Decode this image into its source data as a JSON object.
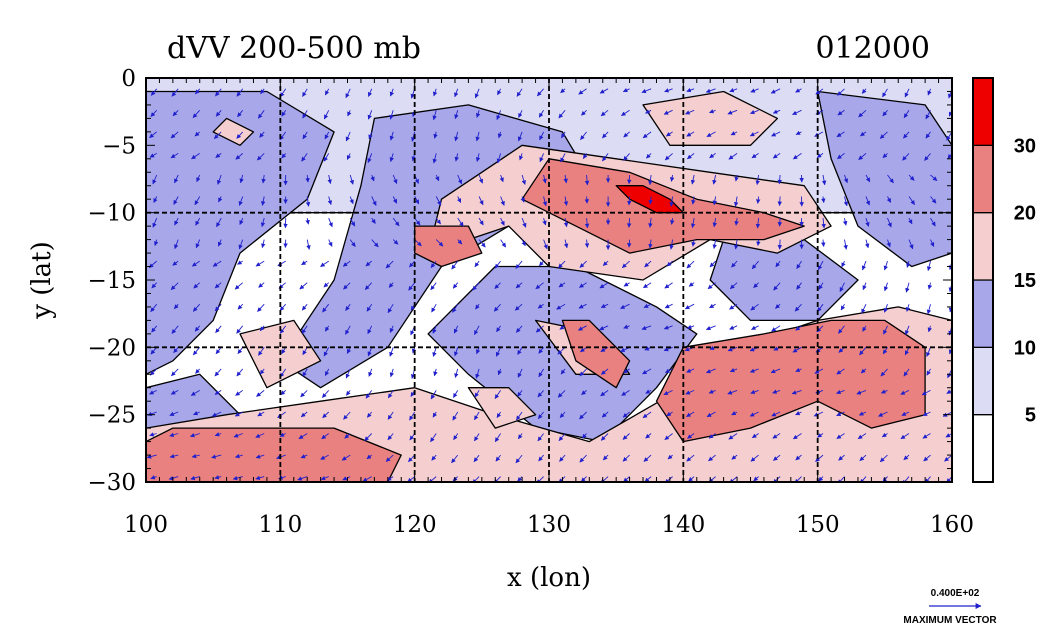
{
  "chart_data": {
    "type": "heatmap",
    "title": "dVV 200-500 mb",
    "time_label": "012000",
    "xlabel": "x (lon)",
    "ylabel": "y (lat)",
    "xlim": [
      100,
      160
    ],
    "ylim": [
      -30,
      0
    ],
    "x_ticks": [
      100,
      110,
      120,
      130,
      140,
      150,
      160
    ],
    "y_ticks": [
      0,
      -5,
      -10,
      -15,
      -20,
      -25,
      -30
    ],
    "x_tick_labels": [
      "100",
      "110",
      "120",
      "130",
      "140",
      "150",
      "160"
    ],
    "y_tick_labels": [
      "0",
      "−5",
      "−10",
      "−15",
      "−20",
      "−25",
      "−30"
    ],
    "grid_x": [
      110,
      120,
      130,
      140,
      150
    ],
    "grid_y": [
      -10,
      -20
    ],
    "colorbar": {
      "levels": [
        0,
        5,
        10,
        15,
        20,
        30,
        40
      ],
      "labels": [
        "5",
        "10",
        "15",
        "20",
        "30"
      ],
      "label_levels": [
        5,
        10,
        15,
        20,
        30
      ],
      "colors": [
        "#ffffff",
        "#dcdcf5",
        "#a7a7e9",
        "#f5cfcf",
        "#ea8181",
        "#ee0000"
      ]
    },
    "vectors": {
      "color": "#2020cc",
      "max_vector_value": "0.400E+02",
      "max_vector_label": "MAXIMUM VECTOR"
    },
    "field_regions": [
      {
        "band": 1,
        "points": [
          [
            100,
            0
          ],
          [
            160,
            0
          ],
          [
            160,
            -10
          ],
          [
            100,
            -10
          ]
        ]
      },
      {
        "band": 2,
        "points": [
          [
            100,
            -1
          ],
          [
            109,
            -1
          ],
          [
            114,
            -4
          ],
          [
            112,
            -9
          ],
          [
            107,
            -13
          ],
          [
            105,
            -18
          ],
          [
            102,
            -21
          ],
          [
            100,
            -22
          ]
        ]
      },
      {
        "band": 2,
        "points": [
          [
            117,
            -3
          ],
          [
            124,
            -2
          ],
          [
            131,
            -4
          ],
          [
            134,
            -9
          ],
          [
            133,
            -13
          ],
          [
            127,
            -11
          ],
          [
            122,
            -14
          ],
          [
            118,
            -20
          ],
          [
            113,
            -23
          ],
          [
            110,
            -21
          ],
          [
            114,
            -15
          ],
          [
            116,
            -8
          ]
        ]
      },
      {
        "band": 2,
        "points": [
          [
            126,
            -14
          ],
          [
            132,
            -14
          ],
          [
            138,
            -17
          ],
          [
            141,
            -19
          ],
          [
            138,
            -23
          ],
          [
            134,
            -27
          ],
          [
            129,
            -26
          ],
          [
            124,
            -22
          ],
          [
            121,
            -19
          ]
        ]
      },
      {
        "band": 2,
        "points": [
          [
            143,
            -12
          ],
          [
            149,
            -12
          ],
          [
            153,
            -15
          ],
          [
            150,
            -18
          ],
          [
            145,
            -18
          ],
          [
            142,
            -15
          ]
        ]
      },
      {
        "band": 2,
        "points": [
          [
            150,
            -1
          ],
          [
            158,
            -2
          ],
          [
            160,
            -5
          ],
          [
            160,
            -13
          ],
          [
            157,
            -14
          ],
          [
            153,
            -11
          ],
          [
            151,
            -6
          ]
        ]
      },
      {
        "band": 2,
        "points": [
          [
            100,
            -23
          ],
          [
            104,
            -22
          ],
          [
            107,
            -25
          ],
          [
            104,
            -27
          ],
          [
            100,
            -27
          ]
        ]
      },
      {
        "band": 2,
        "points": [
          [
            154,
            -20
          ],
          [
            160,
            -20
          ],
          [
            160,
            -28
          ],
          [
            157,
            -27
          ],
          [
            155,
            -24
          ]
        ]
      },
      {
        "band": 3,
        "points": [
          [
            128,
            -5
          ],
          [
            135,
            -6
          ],
          [
            142,
            -7
          ],
          [
            149,
            -8
          ],
          [
            151,
            -11
          ],
          [
            147,
            -13
          ],
          [
            142,
            -12
          ],
          [
            137,
            -15
          ],
          [
            130,
            -14
          ],
          [
            127,
            -11
          ],
          [
            121,
            -13
          ],
          [
            122,
            -9
          ],
          [
            125,
            -7
          ]
        ]
      },
      {
        "band": 3,
        "points": [
          [
            137,
            -2
          ],
          [
            143,
            -1
          ],
          [
            147,
            -3
          ],
          [
            145,
            -5
          ],
          [
            139,
            -5
          ]
        ]
      },
      {
        "band": 3,
        "points": [
          [
            106,
            -3
          ],
          [
            108,
            -4
          ],
          [
            107,
            -5
          ],
          [
            105,
            -4
          ]
        ]
      },
      {
        "band": 3,
        "points": [
          [
            100,
            -26
          ],
          [
            106,
            -25
          ],
          [
            113,
            -24
          ],
          [
            120,
            -23
          ],
          [
            126,
            -25
          ],
          [
            133,
            -27
          ],
          [
            140,
            -23
          ],
          [
            144,
            -20
          ],
          [
            150,
            -18
          ],
          [
            156,
            -17
          ],
          [
            160,
            -18
          ],
          [
            160,
            -30
          ],
          [
            100,
            -30
          ]
        ]
      },
      {
        "band": 3,
        "points": [
          [
            107,
            -19
          ],
          [
            111,
            -18
          ],
          [
            113,
            -21
          ],
          [
            109,
            -23
          ]
        ]
      },
      {
        "band": 3,
        "points": [
          [
            124,
            -23
          ],
          [
            127,
            -23
          ],
          [
            129,
            -25
          ],
          [
            126,
            -26
          ]
        ]
      },
      {
        "band": 3,
        "points": [
          [
            129,
            -18
          ],
          [
            134,
            -19
          ],
          [
            136,
            -22
          ],
          [
            132,
            -22
          ]
        ]
      },
      {
        "band": 4,
        "points": [
          [
            130,
            -6
          ],
          [
            136,
            -7
          ],
          [
            141,
            -9
          ],
          [
            146,
            -10
          ],
          [
            149,
            -11
          ],
          [
            146,
            -12
          ],
          [
            141,
            -12
          ],
          [
            136,
            -13
          ],
          [
            132,
            -11
          ],
          [
            128,
            -9
          ]
        ]
      },
      {
        "band": 4,
        "points": [
          [
            120,
            -11
          ],
          [
            124,
            -11
          ],
          [
            125,
            -13
          ],
          [
            122,
            -14
          ],
          [
            120,
            -13
          ]
        ]
      },
      {
        "band": 4,
        "points": [
          [
            102,
            -26
          ],
          [
            108,
            -26
          ],
          [
            114,
            -26
          ],
          [
            119,
            -28
          ],
          [
            118,
            -30
          ],
          [
            100,
            -30
          ],
          [
            100,
            -27
          ]
        ]
      },
      {
        "band": 4,
        "points": [
          [
            131,
            -18
          ],
          [
            133,
            -18
          ],
          [
            136,
            -21
          ],
          [
            135,
            -23
          ],
          [
            132,
            -21
          ]
        ]
      },
      {
        "band": 4,
        "points": [
          [
            140,
            -20
          ],
          [
            146,
            -19
          ],
          [
            151,
            -18
          ],
          [
            155,
            -18
          ],
          [
            158,
            -20
          ],
          [
            158,
            -25
          ],
          [
            154,
            -26
          ],
          [
            150,
            -24
          ],
          [
            145,
            -26
          ],
          [
            140,
            -27
          ],
          [
            138,
            -24
          ]
        ]
      },
      {
        "band": 5,
        "points": [
          [
            135,
            -8
          ],
          [
            137,
            -8
          ],
          [
            139,
            -9
          ],
          [
            140,
            -10
          ],
          [
            138,
            -10
          ],
          [
            136,
            -9
          ]
        ]
      }
    ]
  }
}
